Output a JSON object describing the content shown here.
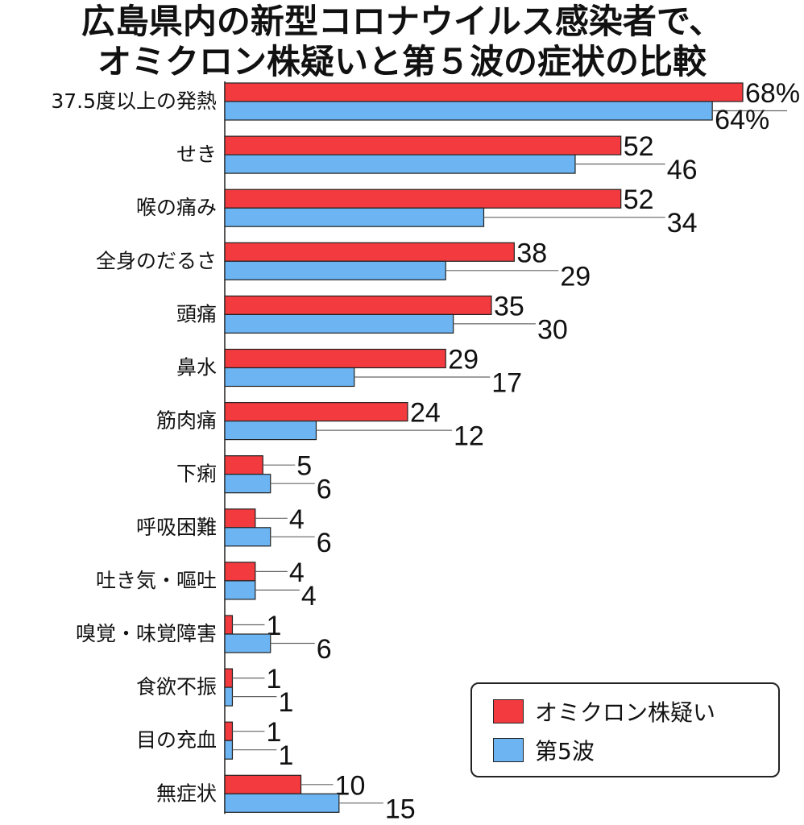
{
  "chart_data": {
    "type": "bar",
    "orientation": "horizontal",
    "title": [
      "広島県内の新型コロナウイルス感染者で、",
      "オミクロン株疑いと第５波の症状の比較"
    ],
    "unit": "%",
    "categories": [
      "37.5度以上の発熱",
      "せき",
      "喉の痛み",
      "全身のだるさ",
      "頭痛",
      "鼻水",
      "筋肉痛",
      "下痢",
      "呼吸困難",
      "吐き気・嘔吐",
      "嗅覚・味覚障害",
      "食欲不振",
      "目の充血",
      "無症状"
    ],
    "series": [
      {
        "name": "オミクロン株疑い",
        "color": "#f23a3f",
        "values": [
          68,
          52,
          52,
          38,
          35,
          29,
          24,
          5,
          4,
          4,
          1,
          1,
          1,
          10
        ],
        "labels": [
          "68%",
          "52",
          "52",
          "38",
          "35",
          "29",
          "24",
          "5",
          "4",
          "4",
          "1",
          "1",
          "1",
          "10"
        ]
      },
      {
        "name": "第5波",
        "color": "#6cb4f2",
        "values": [
          64,
          46,
          34,
          29,
          30,
          17,
          12,
          6,
          6,
          4,
          6,
          1,
          1,
          15
        ],
        "labels": [
          "64%",
          "46",
          "34",
          "29",
          "30",
          "17",
          "12",
          "6",
          "6",
          "4",
          "6",
          "1",
          "1",
          "15"
        ]
      }
    ],
    "xlim": [
      0,
      68
    ],
    "grid": false,
    "legend_position": "bottom-right"
  },
  "legend": {
    "items": [
      {
        "label": "オミクロン株疑い",
        "color": "#f23a3f"
      },
      {
        "label": "第5波",
        "color": "#6cb4f2"
      }
    ]
  }
}
